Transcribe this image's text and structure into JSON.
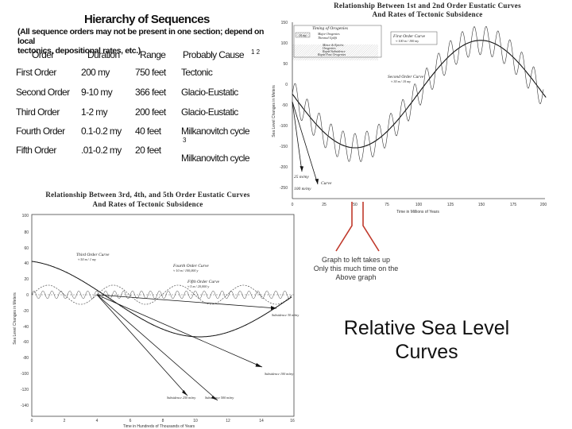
{
  "hierarchy": {
    "title": "Hierarchy of Sequences",
    "note_lines": [
      "(All sequence orders may not be present in one section; depend on local",
      "tectonics, depositional rates, etc.)"
    ],
    "columns": [
      "Order",
      "Duration",
      "Range",
      "Probably Cause"
    ],
    "cause_superscript": "1 2",
    "rows": [
      {
        "order": "First Order",
        "duration": "200 my",
        "range": "750 feet",
        "cause": "Tectonic"
      },
      {
        "order": "Second Order",
        "duration": "9-10 my",
        "range": "366 feet",
        "cause": "Glacio-Eustatic"
      },
      {
        "order": "Third Order",
        "duration": "1-2 my",
        "range": "200 feet",
        "cause": "Glacio-Eustatic"
      },
      {
        "order": "Fourth Order",
        "duration": "0.1-0.2 my",
        "range": "40 feet",
        "cause": "Milkanovitch cycle"
      },
      {
        "order": "Fifth Order",
        "duration": ".01-0.2 my",
        "range": "20 feet",
        "cause": "Milkanovitch cycle"
      }
    ],
    "row3_superscript": "3"
  },
  "top_chart": {
    "title_lines": [
      "Relationship Between 1st and 2nd Order Eustatic Curves",
      "And Rates of Tectonic Subsidence"
    ],
    "ylabel": "Sea Level Changes in Meters",
    "xlabel": "Time in Millions of Years",
    "y_ticks": [
      "150",
      "100",
      "50",
      "0",
      "-50",
      "-100",
      "-150",
      "-200",
      "-250"
    ],
    "x_ticks": [
      "0",
      "25",
      "50",
      "75",
      "100",
      "125",
      "150",
      "175",
      "200"
    ],
    "legend_title": "Timing of Orogenies",
    "legend_items": [
      "10 my",
      "Major Orogenies",
      "Thermal Uplift",
      "Minor & Epeiric",
      "Orogenies",
      "Rapid Subsidence",
      "Rapid Fast Orogenies"
    ],
    "first_order_label": "First Order Curve",
    "first_order_sub": "≈ 100 m / 100 my",
    "second_order_label": "Second Order Curve",
    "second_order_sub": "≈ 30 m / 10 my",
    "rate1_label": "25 m/my",
    "rate2_label": "100 m/my",
    "rate2_note": "Curve",
    "bracket_tick": "50"
  },
  "bottom_chart": {
    "title_lines": [
      "Relationship Between 3rd, 4th, and 5th Order Eustatic Curves",
      "And Rates of Tectonic Subsidence"
    ],
    "ylabel": "Sea Level Changes in Meters",
    "xlabel": "Time in Hundreds of Thousands of Years",
    "y_ticks": [
      "100",
      "80",
      "60",
      "40",
      "20",
      "0",
      "-20",
      "-40",
      "-60",
      "-80",
      "-100",
      "-120",
      "-140"
    ],
    "x_ticks": [
      "0",
      "2",
      "4",
      "6",
      "8",
      "10",
      "12",
      "14",
      "16"
    ],
    "third_label": "Third Order Curve",
    "third_sub": "≈ 50 m / 1 my",
    "fourth_label": "Fourth Order Curve",
    "fourth_sub": "≈ 10 m / 100,000 y",
    "fifth_label": "Fifth Order Curve",
    "fifth_sub": "≈ 5 m / 20,000 y",
    "rate_labels": [
      "Subsidence 30 m/my",
      "Subsidence 100 m/my",
      "Subsidence 250 m/my",
      "Subsidence 500 m/my"
    ]
  },
  "annotation": {
    "lines": [
      "Graph to left takes up",
      "Only this much time on the",
      "Above graph"
    ],
    "color": "#c0392b"
  },
  "slide_title_lines": [
    "Relative Sea Level",
    "Curves"
  ]
}
